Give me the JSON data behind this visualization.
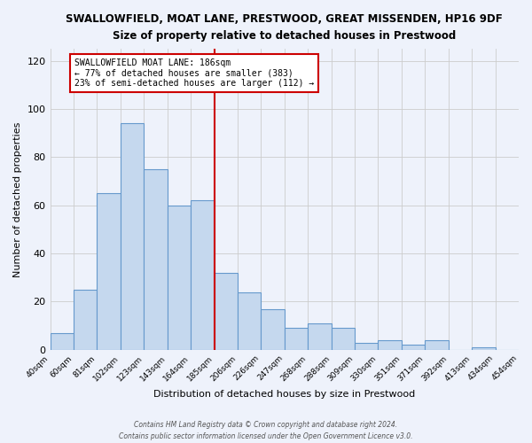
{
  "title": "SWALLOWFIELD, MOAT LANE, PRESTWOOD, GREAT MISSENDEN, HP16 9DF",
  "subtitle": "Size of property relative to detached houses in Prestwood",
  "xlabel": "Distribution of detached houses by size in Prestwood",
  "ylabel": "Number of detached properties",
  "bar_color": "#c5d8ee",
  "bar_edge_color": "#6699cc",
  "background_color": "#eef2fb",
  "grid_color": "#cccccc",
  "bin_labels": [
    "40sqm",
    "60sqm",
    "81sqm",
    "102sqm",
    "123sqm",
    "143sqm",
    "164sqm",
    "185sqm",
    "206sqm",
    "226sqm",
    "247sqm",
    "268sqm",
    "288sqm",
    "309sqm",
    "330sqm",
    "351sqm",
    "371sqm",
    "392sqm",
    "413sqm",
    "434sqm",
    "454sqm"
  ],
  "bar_heights": [
    7,
    25,
    65,
    94,
    75,
    60,
    62,
    32,
    24,
    17,
    9,
    11,
    9,
    3,
    4,
    2,
    4,
    0,
    1,
    0
  ],
  "ylim": [
    0,
    125
  ],
  "yticks": [
    0,
    20,
    40,
    60,
    80,
    100,
    120
  ],
  "vline_index": 7,
  "vline_color": "#cc0000",
  "annotation_title": "SWALLOWFIELD MOAT LANE: 186sqm",
  "annotation_line1": "← 77% of detached houses are smaller (383)",
  "annotation_line2": "23% of semi-detached houses are larger (112) →",
  "annotation_box_color": "#ffffff",
  "annotation_box_edge": "#cc0000",
  "footer1": "Contains HM Land Registry data © Crown copyright and database right 2024.",
  "footer2": "Contains public sector information licensed under the Open Government Licence v3.0."
}
